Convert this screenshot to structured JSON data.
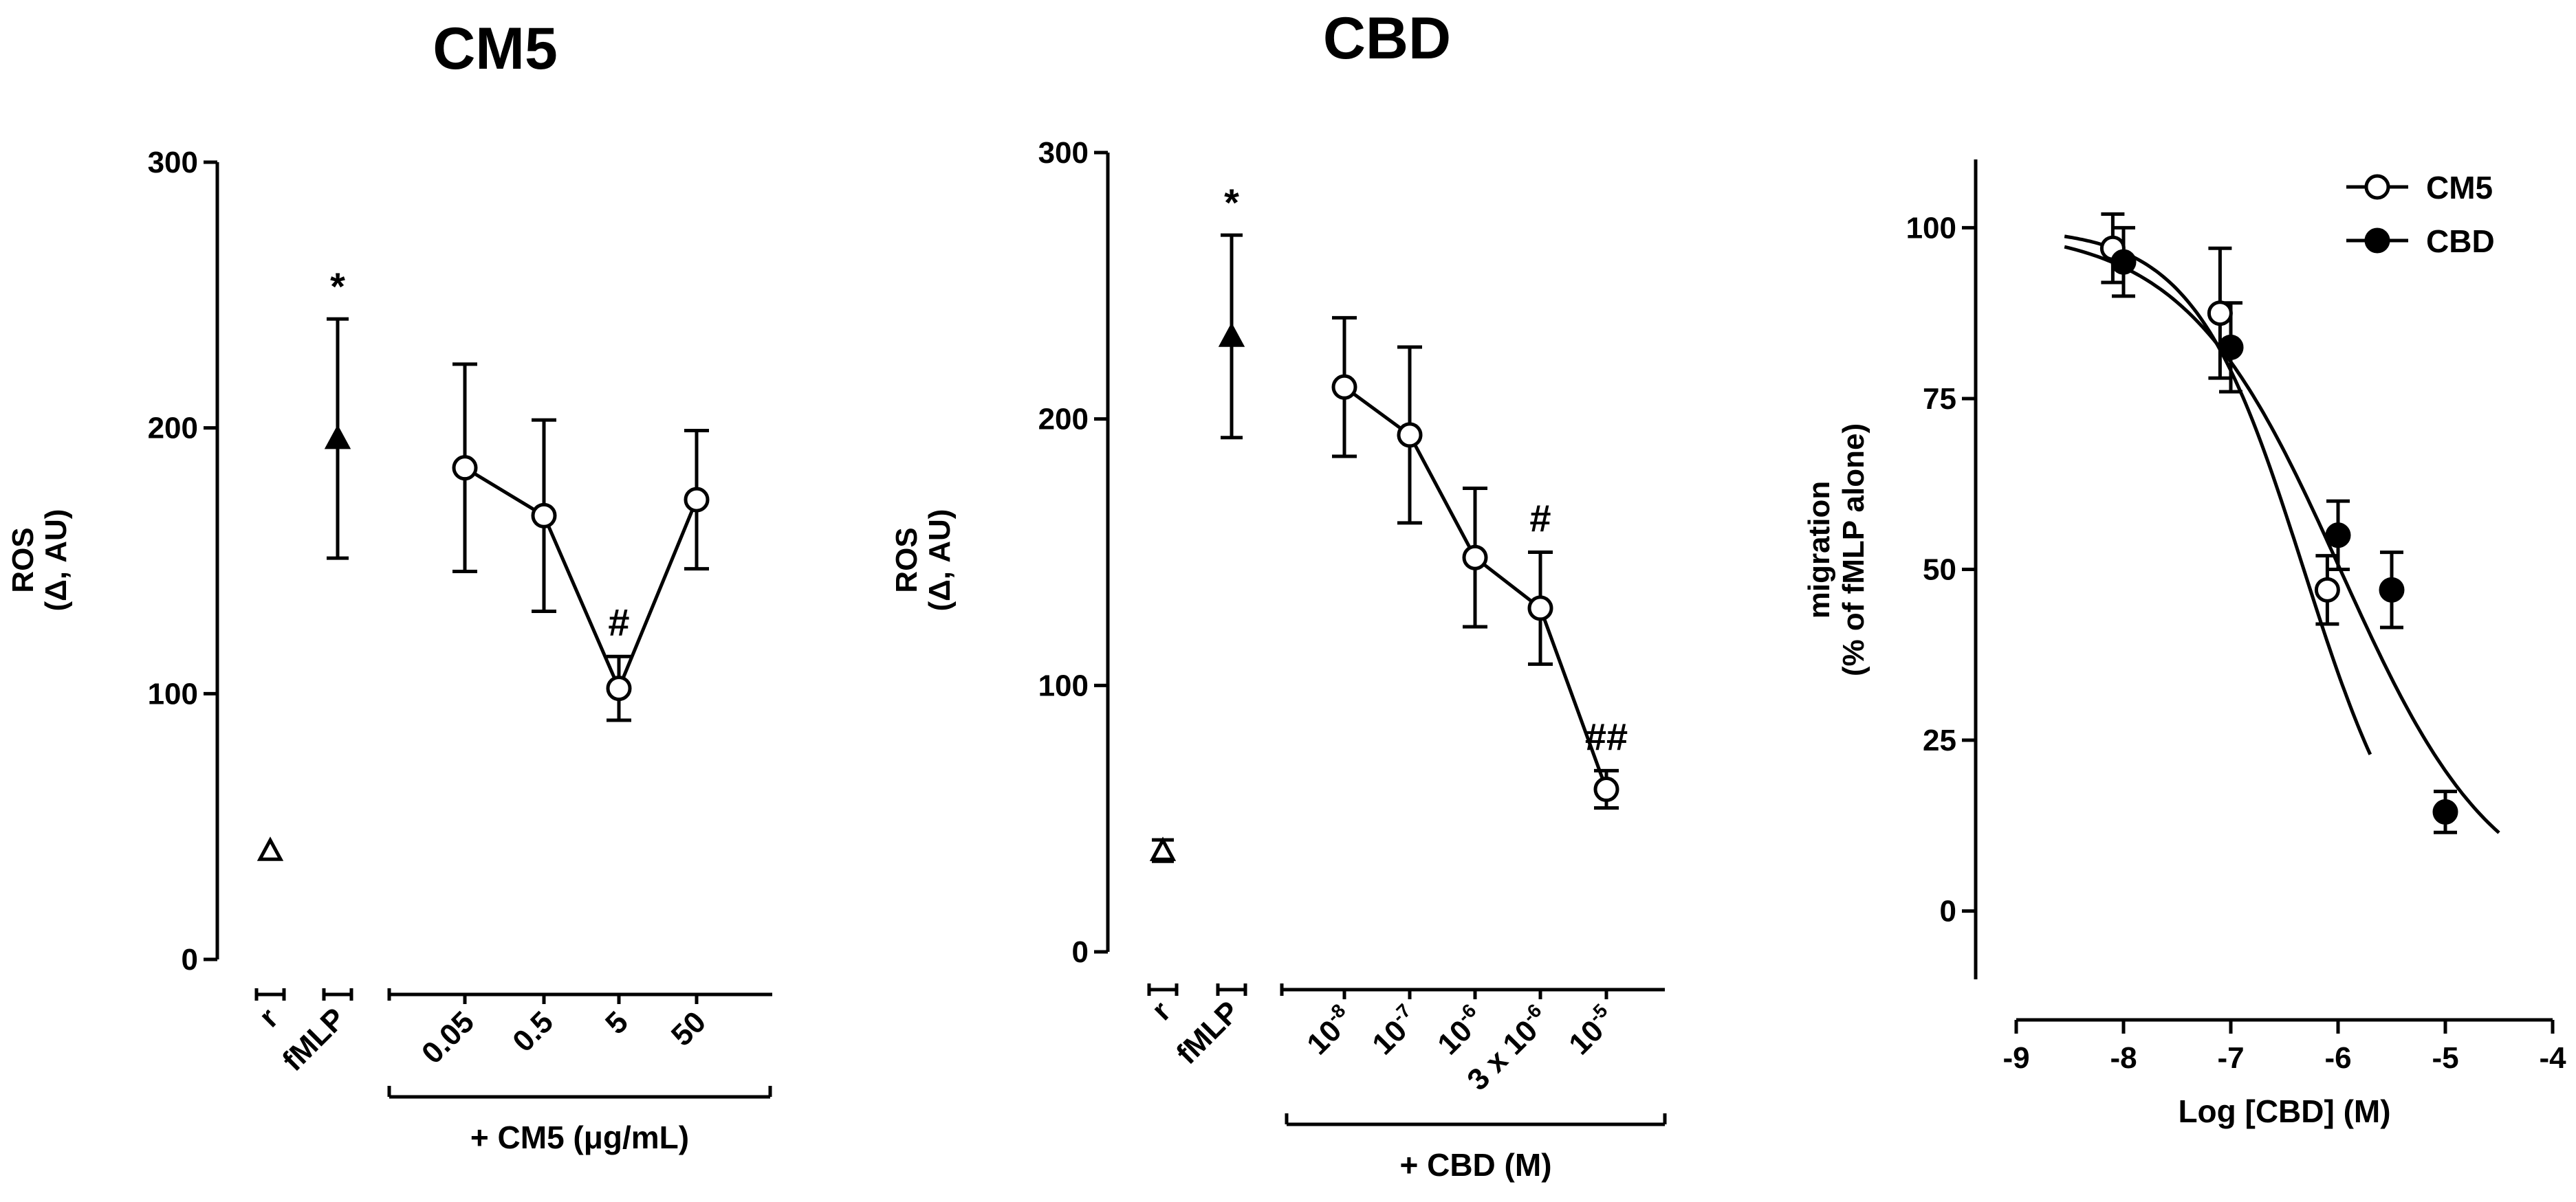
{
  "chart_data": [
    {
      "type": "scatter",
      "title": "CM5",
      "ylabel": [
        "ROS",
        "(Δ, AU)"
      ],
      "ylim": [
        0,
        300
      ],
      "yticks": [
        0,
        100,
        200,
        300
      ],
      "controls": [
        {
          "label": "r",
          "marker": "open-triangle",
          "value": 41,
          "err": 0
        },
        {
          "label": "fMLP",
          "marker": "filled-triangle",
          "value": 196,
          "err": 45,
          "annotation": "*"
        }
      ],
      "dose_categories": [
        "0.05",
        "0.5",
        "5",
        "50"
      ],
      "dose_values": [
        185,
        167,
        102,
        173
      ],
      "dose_errors": [
        39,
        36,
        12,
        26
      ],
      "dose_annotations": [
        "",
        "",
        "#",
        ""
      ],
      "group_label": "+ CM5 (μg/mL)"
    },
    {
      "type": "scatter",
      "title": "CBD",
      "ylabel": [
        "ROS",
        "(Δ, AU)"
      ],
      "ylim": [
        0,
        300
      ],
      "yticks": [
        0,
        100,
        200,
        300
      ],
      "controls": [
        {
          "label": "r",
          "marker": "open-triangle",
          "value": 38,
          "err": 4
        },
        {
          "label": "fMLP",
          "marker": "filled-triangle",
          "value": 231,
          "err": 38,
          "annotation": "*"
        }
      ],
      "dose_categories": [
        {
          "base": "10",
          "exp": "-8"
        },
        {
          "base": "10",
          "exp": "-7"
        },
        {
          "base": "10",
          "exp": "-6"
        },
        {
          "base": "3 x 10",
          "exp": "-6"
        },
        {
          "base": "10",
          "exp": "-5"
        }
      ],
      "dose_values": [
        212,
        194,
        148,
        129,
        61
      ],
      "dose_errors": [
        26,
        33,
        26,
        21,
        7
      ],
      "dose_annotations": [
        "",
        "",
        "",
        "#",
        "##"
      ],
      "group_label": "+ CBD (M)"
    },
    {
      "type": "line",
      "xlabel": "Log [CBD] (M)",
      "ylabel": [
        "migration",
        "(% of fMLP alone)"
      ],
      "xlim": [
        -9,
        -4
      ],
      "ylim": [
        -10,
        110
      ],
      "xticks": [
        -9,
        -8,
        -7,
        -6,
        -5,
        -4
      ],
      "yticks": [
        0,
        25,
        50,
        75,
        100
      ],
      "legend": "top-right",
      "series": [
        {
          "name": "CM5",
          "marker": "open-circle",
          "x": [
            -8.1,
            -7.1,
            -6.1
          ],
          "y": [
            97,
            87.5,
            47
          ],
          "err": [
            5,
            9.5,
            5
          ],
          "fit": {
            "x_start": -8.55,
            "x_end": -5.7,
            "top": 100,
            "bottom": 0,
            "log_ic50": -6.32,
            "hill": -0.85
          }
        },
        {
          "name": "CBD",
          "marker": "filled-circle",
          "x": [
            -8.0,
            -7.0,
            -6.0,
            -5.5,
            -5.0
          ],
          "y": [
            95,
            82.5,
            55,
            47,
            14.5
          ],
          "err": [
            5,
            6.5,
            5,
            5.5,
            3
          ],
          "fit": {
            "x_start": -8.55,
            "x_end": -4.5,
            "top": 100,
            "bottom": 0,
            "log_ic50": -5.98,
            "hill": -0.6
          }
        }
      ]
    }
  ]
}
